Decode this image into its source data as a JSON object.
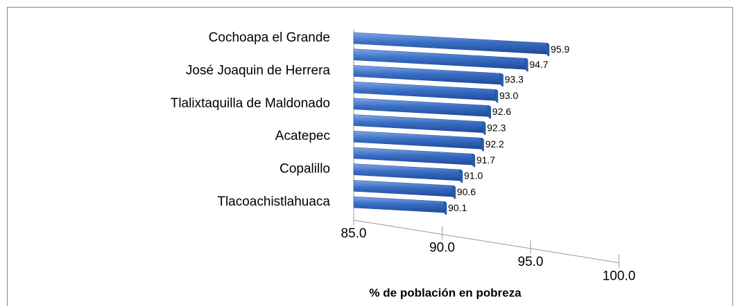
{
  "chart_data": {
    "type": "bar",
    "orientation": "horizontal",
    "three_d": true,
    "categories": [
      "Cochoapa el Grande",
      null,
      "José Joaquin de Herrera",
      null,
      "Tlalixtaquilla de Maldonado",
      null,
      "Acatepec",
      null,
      "Copalillo",
      null,
      "Tlacoachistlahuaca"
    ],
    "values": [
      95.9,
      94.7,
      93.3,
      93.0,
      92.6,
      92.3,
      92.2,
      91.7,
      91.0,
      90.6,
      90.1
    ],
    "value_labels": [
      "95.9",
      "94.7",
      "93.3",
      "93.0",
      "92.6",
      "92.3",
      "92.2",
      "91.7",
      "91.0",
      "90.6",
      "90.1"
    ],
    "color": "#3a6fc4",
    "x_label": "% de  población en pobreza",
    "xlim": [
      85,
      100
    ],
    "xticks": [
      {
        "value": 85,
        "label": "85.0"
      },
      {
        "value": 90,
        "label": "90.0"
      },
      {
        "value": 95,
        "label": "95.0"
      },
      {
        "value": 100,
        "label": "100.0"
      }
    ]
  }
}
